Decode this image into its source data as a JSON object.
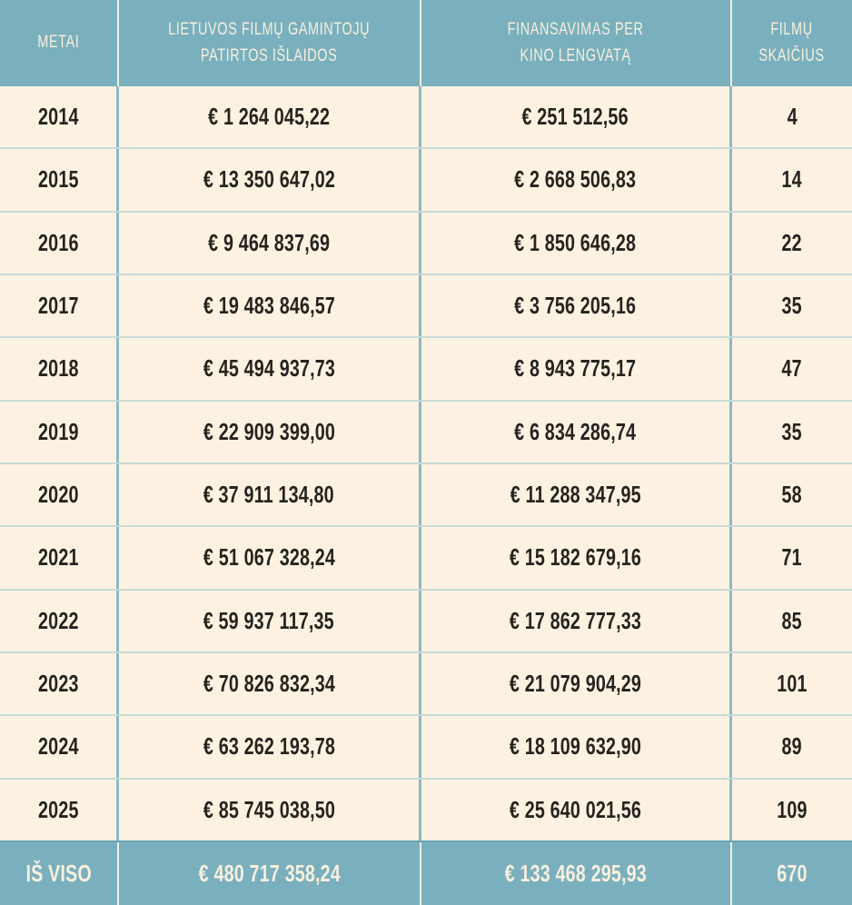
{
  "chart_data": {
    "type": "table",
    "columns": [
      "METAI",
      "LIETUVOS FILMŲ GAMINTOJŲ PATIRTOS IŠLAIDOS",
      "FINANSAVIMAS PER KINO LENGVATĄ",
      "FILMŲ SKAIČIUS"
    ],
    "rows": [
      {
        "metai": 2014,
        "islaidos_eur": 1264045.22,
        "lengvata_eur": 251512.56,
        "filmu_skaicius": 4
      },
      {
        "metai": 2015,
        "islaidos_eur": 13350647.02,
        "lengvata_eur": 2668506.83,
        "filmu_skaicius": 14
      },
      {
        "metai": 2016,
        "islaidos_eur": 9464837.69,
        "lengvata_eur": 1850646.28,
        "filmu_skaicius": 22
      },
      {
        "metai": 2017,
        "islaidos_eur": 19483846.57,
        "lengvata_eur": 3756205.16,
        "filmu_skaicius": 35
      },
      {
        "metai": 2018,
        "islaidos_eur": 45494937.73,
        "lengvata_eur": 8943775.17,
        "filmu_skaicius": 47
      },
      {
        "metai": 2019,
        "islaidos_eur": 22909399.0,
        "lengvata_eur": 6834286.74,
        "filmu_skaicius": 35
      },
      {
        "metai": 2020,
        "islaidos_eur": 37911134.8,
        "lengvata_eur": 11288347.95,
        "filmu_skaicius": 58
      },
      {
        "metai": 2021,
        "islaidos_eur": 51067328.24,
        "lengvata_eur": 15182679.16,
        "filmu_skaicius": 71
      },
      {
        "metai": 2022,
        "islaidos_eur": 59937117.35,
        "lengvata_eur": 17862777.33,
        "filmu_skaicius": 85
      },
      {
        "metai": 2023,
        "islaidos_eur": 70826832.34,
        "lengvata_eur": 21079904.29,
        "filmu_skaicius": 101
      },
      {
        "metai": 2024,
        "islaidos_eur": 63262193.78,
        "lengvata_eur": 18109632.9,
        "filmu_skaicius": 89
      },
      {
        "metai": 2025,
        "islaidos_eur": 85745038.5,
        "lengvata_eur": 25640021.56,
        "filmu_skaicius": 109
      }
    ],
    "total": {
      "label": "IŠ VISO",
      "islaidos_eur": 480717358.24,
      "lengvata_eur": 133468295.93,
      "filmu_skaicius": 670
    }
  },
  "table": {
    "header": {
      "metai": "METAI",
      "expenses_line1": "LIETUVOS FILMŲ GAMINTOJŲ",
      "expenses_line2": "PATIRTOS IŠLAIDOS",
      "incentive_line1": "FINANSAVIMAS PER",
      "incentive_line2": "KINO LENGVATĄ",
      "films_line1": "FILMŲ",
      "films_line2": "SKAIČIUS"
    },
    "rows": [
      {
        "year": "2014",
        "expenses": "€ 1 264 045,22",
        "incentive": "€ 251 512,56",
        "films": "4"
      },
      {
        "year": "2015",
        "expenses": "€ 13 350 647,02",
        "incentive": "€ 2 668 506,83",
        "films": "14"
      },
      {
        "year": "2016",
        "expenses": "€ 9 464 837,69",
        "incentive": "€ 1 850 646,28",
        "films": "22"
      },
      {
        "year": "2017",
        "expenses": "€ 19 483 846,57",
        "incentive": "€ 3 756 205,16",
        "films": "35"
      },
      {
        "year": "2018",
        "expenses": "€ 45 494 937,73",
        "incentive": "€ 8 943 775,17",
        "films": "47"
      },
      {
        "year": "2019",
        "expenses": "€ 22 909 399,00",
        "incentive": "€ 6 834 286,74",
        "films": "35"
      },
      {
        "year": "2020",
        "expenses": "€ 37 911 134,80",
        "incentive": "€ 11 288 347,95",
        "films": "58"
      },
      {
        "year": "2021",
        "expenses": "€ 51 067 328,24",
        "incentive": "€ 15 182 679,16",
        "films": "71"
      },
      {
        "year": "2022",
        "expenses": "€ 59 937 117,35",
        "incentive": "€ 17 862 777,33",
        "films": "85"
      },
      {
        "year": "2023",
        "expenses": "€ 70 826 832,34",
        "incentive": "€ 21 079 904,29",
        "films": "101"
      },
      {
        "year": "2024",
        "expenses": "€ 63 262 193,78",
        "incentive": "€ 18 109 632,90",
        "films": "89"
      },
      {
        "year": "2025",
        "expenses": "€ 85 745 038,50",
        "incentive": "€ 25 640 021,56",
        "films": "109"
      }
    ],
    "total": {
      "label": "IŠ VISO",
      "expenses": "€ 480 717 358,24",
      "incentive": "€ 133 468 295,93",
      "films": "670"
    }
  },
  "colors": {
    "header_bg": "#7ab0bd",
    "row_bg": "#fdf2e2",
    "body_text": "#26231f",
    "header_text": "#f8efdf",
    "row_divider": "#c5dad7",
    "column_divider": "#8bb9c2",
    "header_divider": "#f6ecdc"
  }
}
